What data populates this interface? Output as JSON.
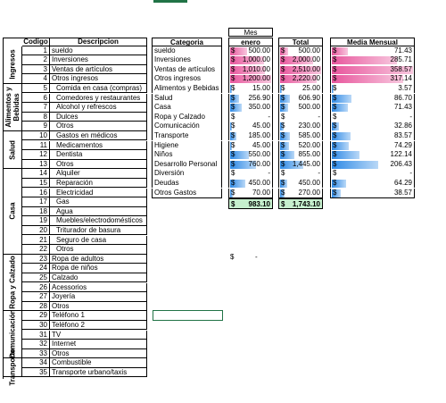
{
  "header": {
    "mes_label": "Mes",
    "month": "enero",
    "total_label": "Total",
    "media_label": "Media Mensual"
  },
  "left": {
    "col_codigo": "Codigo",
    "col_descripcion": "Descripcion",
    "sections": [
      "Ingresos",
      "Alimentos y\nBebidas",
      "Salud",
      "Casa",
      "Ropa y Calzado",
      "Comunicación",
      "Transporte"
    ],
    "rows": [
      {
        "code": "1",
        "desc": "sueldo"
      },
      {
        "code": "2",
        "desc": "Inversiones"
      },
      {
        "code": "3",
        "desc": "Ventas de artículos"
      },
      {
        "code": "4",
        "desc": "Otros ingresos"
      },
      {
        "code": "5",
        "desc": "Comida en casa (compras)"
      },
      {
        "code": "6",
        "desc": "Comedores y restaurantes"
      },
      {
        "code": "7",
        "desc": "Alcohol y refrescos"
      },
      {
        "code": "8",
        "desc": "Dulces"
      },
      {
        "code": "9",
        "desc": "Otros"
      },
      {
        "code": "10",
        "desc": "Gastos en médicos"
      },
      {
        "code": "11",
        "desc": "Medicamentos"
      },
      {
        "code": "12",
        "desc": "Dentista"
      },
      {
        "code": "13",
        "desc": "Otros"
      },
      {
        "code": "14",
        "desc": "Alquiler"
      },
      {
        "code": "15",
        "desc": "Reparación"
      },
      {
        "code": "16",
        "desc": "Electricidad"
      },
      {
        "code": "17",
        "desc": "Gas"
      },
      {
        "code": "18",
        "desc": "Agua"
      },
      {
        "code": "19",
        "desc": "Muebles/electrodomésticos"
      },
      {
        "code": "20",
        "desc": "Triturador de basura"
      },
      {
        "code": "21",
        "desc": "Seguro de casa"
      },
      {
        "code": "22",
        "desc": "Otros"
      },
      {
        "code": "23",
        "desc": "Ropa de adultos"
      },
      {
        "code": "24",
        "desc": "Ropa de niños"
      },
      {
        "code": "25",
        "desc": "Calzado"
      },
      {
        "code": "26",
        "desc": "Acessorios"
      },
      {
        "code": "27",
        "desc": "Joyería"
      },
      {
        "code": "28",
        "desc": "Otros"
      },
      {
        "code": "29",
        "desc": "Teléfono 1"
      },
      {
        "code": "30",
        "desc": "Teléfono 2"
      },
      {
        "code": "31",
        "desc": "TV"
      },
      {
        "code": "32",
        "desc": "Internet"
      },
      {
        "code": "33",
        "desc": "Otros"
      },
      {
        "code": "34",
        "desc": "Combustible"
      },
      {
        "code": "35",
        "desc": "Transporte urbano/taxis"
      }
    ]
  },
  "right": {
    "col_categoria": "Categoria",
    "rows": [
      {
        "cat": "sueldo",
        "enero": "500.00",
        "enero_v": 500,
        "total": "500.00",
        "total_v": 500,
        "media": "71.43",
        "media_v": 71.43,
        "color": "pink"
      },
      {
        "cat": "Inversiones",
        "enero": "1,000.00",
        "enero_v": 1000,
        "total": "2,000.00",
        "total_v": 2000,
        "media": "285.71",
        "media_v": 285.71,
        "color": "pink"
      },
      {
        "cat": "Ventas de artículos",
        "enero": "1,010.00",
        "enero_v": 1010,
        "total": "2,510.00",
        "total_v": 2510,
        "media": "358.57",
        "media_v": 358.57,
        "color": "pink"
      },
      {
        "cat": "Otros ingresos",
        "enero": "1,200.00",
        "enero_v": 1200,
        "total": "2,220.00",
        "total_v": 2220,
        "media": "317.14",
        "media_v": 317.14,
        "color": "pink"
      },
      {
        "cat": "Alimentos y Bebidas",
        "enero": "15.00",
        "enero_v": 15,
        "total": "25.00",
        "total_v": 25,
        "media": "3.57",
        "media_v": 3.57,
        "color": "blue"
      },
      {
        "cat": "Salud",
        "enero": "256.90",
        "enero_v": 256.9,
        "total": "606.90",
        "total_v": 606.9,
        "media": "86.70",
        "media_v": 86.7,
        "color": "blue"
      },
      {
        "cat": "Casa",
        "enero": "350.00",
        "enero_v": 350,
        "total": "500.00",
        "total_v": 500,
        "media": "71.43",
        "media_v": 71.43,
        "color": "blue"
      },
      {
        "cat": "Ropa y Calzado",
        "enero": "-",
        "enero_v": 0,
        "total": "-",
        "total_v": 0,
        "media": "-",
        "media_v": 0,
        "color": "blue"
      },
      {
        "cat": "Comunicación",
        "enero": "45.00",
        "enero_v": 45,
        "total": "230.00",
        "total_v": 230,
        "media": "32.86",
        "media_v": 32.86,
        "color": "blue"
      },
      {
        "cat": "Transporte",
        "enero": "185.00",
        "enero_v": 185,
        "total": "585.00",
        "total_v": 585,
        "media": "83.57",
        "media_v": 83.57,
        "color": "blue"
      },
      {
        "cat": "Higiene",
        "enero": "45.00",
        "enero_v": 45,
        "total": "520.00",
        "total_v": 520,
        "media": "74.29",
        "media_v": 74.29,
        "color": "blue"
      },
      {
        "cat": "Niños",
        "enero": "550.00",
        "enero_v": 550,
        "total": "855.00",
        "total_v": 855,
        "media": "122.14",
        "media_v": 122.14,
        "color": "blue"
      },
      {
        "cat": "Desarrollo Personal",
        "enero": "760.00",
        "enero_v": 760,
        "total": "1,445.00",
        "total_v": 1445,
        "media": "206.43",
        "media_v": 206.43,
        "color": "blue"
      },
      {
        "cat": "Diversión",
        "enero": "-",
        "enero_v": 0,
        "total": "-",
        "total_v": 0,
        "media": "-",
        "media_v": 0,
        "color": "blue"
      },
      {
        "cat": "Deudas",
        "enero": "450.00",
        "enero_v": 450,
        "total": "450.00",
        "total_v": 450,
        "media": "64.29",
        "media_v": 64.29,
        "color": "blue"
      },
      {
        "cat": "Otros  Gastos",
        "enero": "70.00",
        "enero_v": 70,
        "total": "270.00",
        "total_v": 270,
        "media": "38.57",
        "media_v": 38.57,
        "color": "blue"
      }
    ],
    "totals": {
      "enero": "983.10",
      "total": "1,743.10"
    },
    "currency": "$",
    "stray_dollar": "$",
    "stray_dash": "-"
  },
  "colors": {
    "pink": "#e8579d",
    "blue": "#2e8ae6",
    "total_bg": "#c6efce",
    "accent": "#217346"
  }
}
